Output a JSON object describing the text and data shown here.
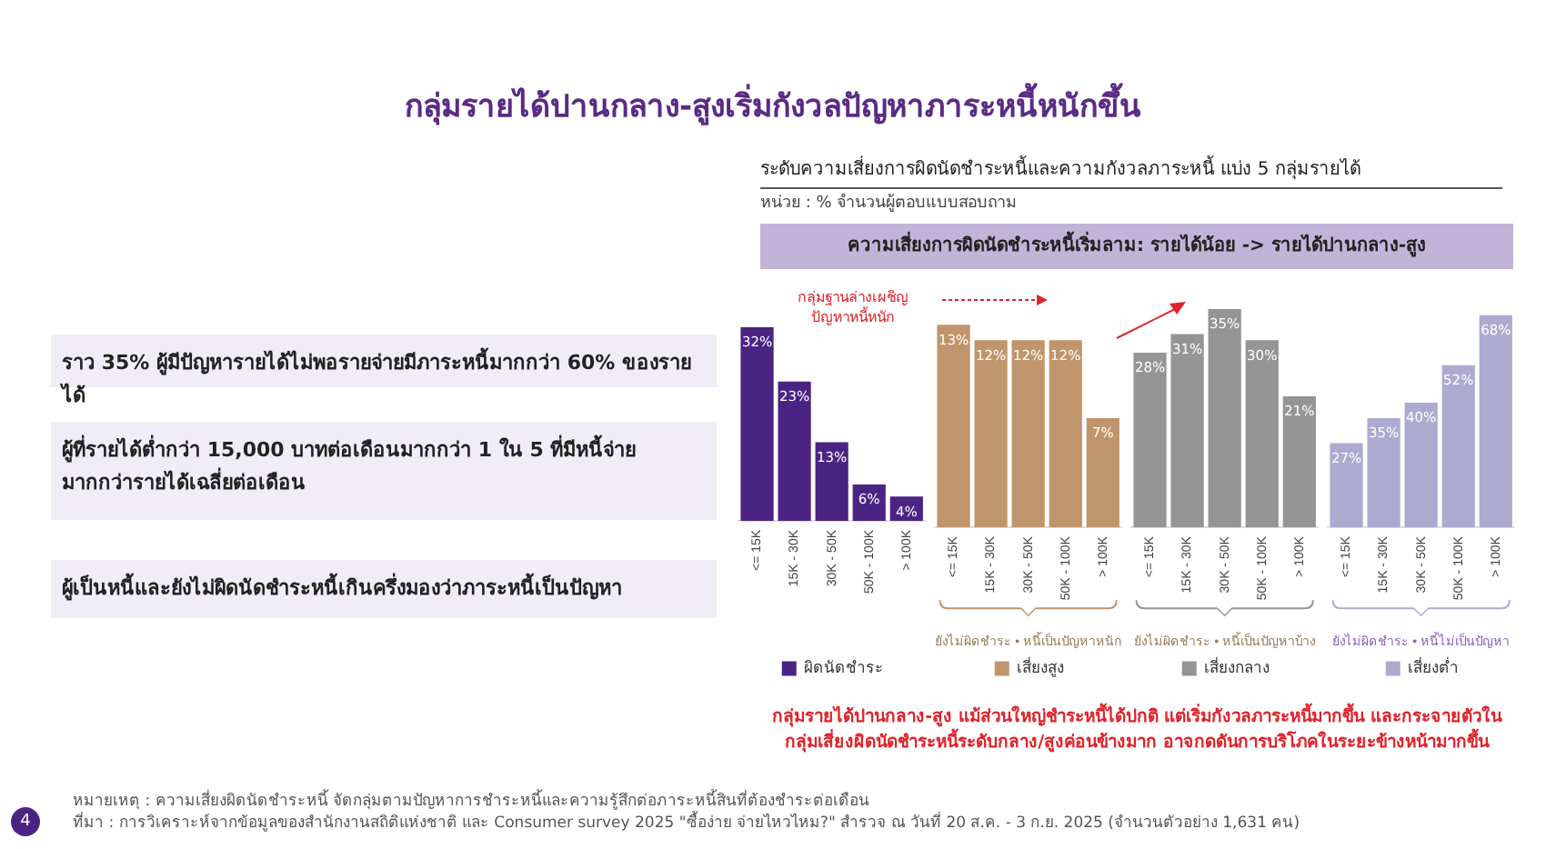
{
  "chart_data": [
    {
      "type": "bar",
      "title": "กลุ่มรายได้ปานกลาง-สูงเริ่มกังวลปัญหาภาระหนี้หนักขึ้น",
      "subtitle": "ระดับความเสี่ยงการผิดนัดชำระหนี้และความกังวลภาระหนี้ แบ่ง 5 กลุ่มรายได้",
      "categories": [
        "<= 15K",
        "15K - 30K",
        "30K - 50K",
        "50K - 100K",
        "> 100K"
      ],
      "series": [
        {
          "name": "ผิดนัดชำระ",
          "color": "#4b2483",
          "values": [
            32,
            23,
            13,
            6,
            4
          ],
          "value_labels": [
            "32%",
            "23%",
            "13%",
            "6%",
            "4%"
          ]
        }
      ],
      "legend": "bottom",
      "tick_labels": "x",
      "annotations": [
        "หน่วย : % จำนวนผู้ตอบแบบสอบถาม",
        "ความเสี่ยงการผิดนัดชำระหนี้เริ่มลาม: รายได้น้อย -> รายได้ปานกลาง-สูง",
        "กลุ่มฐานล่างเผชิญปัญหาหนี้หนัก",
        "กลุ่มรายได้ปานกลาง-สูง แม้ส่วนใหญ่ชำระหนี้ได้ปกติ แต่เริ่มกังวลภาระหนี้มากขึ้น และกระจายตัวในกลุ่มเสี่ยงผิดนัดชำระหนี้ระดับกลาง/สูงค่อนข้างมาก อาจกดดันการบริโภคในระยะข้างหน้ามากขึ้น",
        "ราว 35% ผู้มีปัญหารายได้ไม่พอรายจ่ายมีภาระหนี้มากกว่า 60% ของรายได้",
        "ผู้ที่รายได้ต่ำกว่า 15,000 บาทต่อเดือนมากกว่า 1 ใน 5 ที่มีหนี้จ่ายมากกว่ารายได้เฉลี่ยต่อเดือน",
        "ผู้เป็นหนี้และยังไม่ผิดนัดชำระหนี้เกินครึ่งมองว่าภาระหนี้เป็นปัญหา",
        "หมายเหตุ : ความเสี่ยงผิดนัดชำระหนี้ จัดกลุ่มตามปัญหาการชำระหนี้และความรู้สึกต่อภาระหนี้สินที่ต้องชำระต่อเดือน",
        "ที่มา : การวิเคราะห์จากข้อมูลของสำนักงานสถิติแห่งชาติ และ Consumer survey 2025 \"ซื้อง่าย จ่ายไหวไหม?\" สำรวจ ณ วันที่ 20 ส.ค. - 3 ก.ย. 2025 (จำนวนตัวอย่าง 1,631 คน)",
        "4"
      ]
    },
    {
      "type": "bar",
      "xlabel": "ยังไม่ผิดชำระ • หนี้เป็นปัญหาหนัก",
      "categories": [
        "<= 15K",
        "15K - 30K",
        "30K - 50K",
        "50K - 100K",
        "> 100K"
      ],
      "series": [
        {
          "name": "เสี่ยงสูง",
          "color": "#c0956b",
          "values": [
            13,
            12,
            12,
            12,
            7
          ],
          "value_labels": [
            "13%",
            "12%",
            "12%",
            "12%",
            "7%"
          ]
        }
      ],
      "legend": "bottom",
      "tick_labels": "x"
    },
    {
      "type": "bar",
      "xlabel": "ยังไม่ผิดชำระ • หนี้เป็นปัญหาบ้าง",
      "categories": [
        "<= 15K",
        "15K - 30K",
        "30K - 50K",
        "50K - 100K",
        "> 100K"
      ],
      "series": [
        {
          "name": "เสี่ยงกลาง",
          "color": "#959595",
          "values": [
            28,
            31,
            35,
            30,
            21
          ],
          "value_labels": [
            "28%",
            "31%",
            "35%",
            "30%",
            "21%"
          ]
        }
      ],
      "legend": "bottom",
      "tick_labels": "x"
    },
    {
      "type": "bar",
      "xlabel": "ยังไม่ผิดชำระ • หนี้ไม่เป็นปัญหา",
      "categories": [
        "<= 15K",
        "15K - 30K",
        "30K - 50K",
        "50K - 100K",
        "> 100K"
      ],
      "series": [
        {
          "name": "เสี่ยงต่ำ",
          "color": "#adaacf",
          "values": [
            27,
            35,
            40,
            52,
            68
          ],
          "value_labels": [
            "27%",
            "35%",
            "40%",
            "52%",
            "68%"
          ]
        }
      ],
      "legend": "bottom",
      "tick_labels": "x"
    }
  ]
}
